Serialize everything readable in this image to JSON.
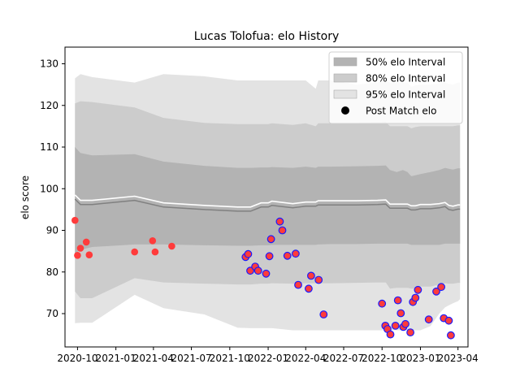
{
  "chart_data": {
    "type": "scatter",
    "title": "Lucas Tolofua: elo History",
    "xlabel": "",
    "ylabel": "elo score",
    "xlim": [
      "2020-09-01",
      "2023-04-25"
    ],
    "ylim": [
      62,
      134
    ],
    "x_ticks": [
      "2020-10",
      "2021-01",
      "2021-04",
      "2021-07",
      "2021-10",
      "2022-01",
      "2022-04",
      "2022-07",
      "2022-10",
      "2023-01",
      "2023-04"
    ],
    "y_ticks": [
      70,
      80,
      90,
      100,
      110,
      120,
      130
    ],
    "grid": false,
    "legend_position": "top-right",
    "legend": [
      {
        "label": "50% elo Interval",
        "color": "#b3b3b3",
        "kind": "patch"
      },
      {
        "label": "80% elo Interval",
        "color": "#cccccc",
        "kind": "patch"
      },
      {
        "label": "95% elo Interval",
        "color": "#e3e3e3",
        "kind": "patch"
      },
      {
        "label": "Post Match elo",
        "color": "#000000",
        "kind": "marker"
      }
    ],
    "bands": {
      "x": [
        "2020-09-25",
        "2020-10-08",
        "2020-11-05",
        "2021-02-15",
        "2021-04-25",
        "2021-08-01",
        "2021-10-20",
        "2021-11-20",
        "2021-12-15",
        "2022-01-01",
        "2022-01-10",
        "2022-03-01",
        "2022-04-01",
        "2022-04-25",
        "2022-05-01",
        "2022-06-01",
        "2022-08-01",
        "2022-09-20",
        "2022-10-10",
        "2022-10-20",
        "2022-11-05",
        "2022-11-20",
        "2022-12-01",
        "2022-12-10",
        "2022-12-20",
        "2023-01-01",
        "2023-01-25",
        "2023-02-15",
        "2023-03-01",
        "2023-03-10",
        "2023-03-20",
        "2023-04-01",
        "2023-04-06"
      ],
      "mean": [
        97.5,
        96.2,
        96.2,
        97.2,
        95.6,
        95.0,
        94.6,
        94.6,
        95.6,
        95.6,
        96.0,
        95.4,
        95.8,
        95.8,
        96.1,
        96.1,
        96.1,
        96.2,
        96.3,
        95.3,
        95.3,
        95.3,
        95.3,
        94.9,
        94.9,
        95.2,
        95.2,
        95.4,
        95.7,
        95.0,
        94.8,
        95.1,
        95.1
      ],
      "p50": [
        [
          84.5,
          110.0
        ],
        [
          85.3,
          108.6
        ],
        [
          86.0,
          108.0
        ],
        [
          86.6,
          108.3
        ],
        [
          86.6,
          106.5
        ],
        [
          86.4,
          105.5
        ],
        [
          86.3,
          105.0
        ],
        [
          86.3,
          105.0
        ],
        [
          86.4,
          105.1
        ],
        [
          86.4,
          105.1
        ],
        [
          86.5,
          105.2
        ],
        [
          86.5,
          105.0
        ],
        [
          86.5,
          105.3
        ],
        [
          86.5,
          105.0
        ],
        [
          86.6,
          105.3
        ],
        [
          86.7,
          105.3
        ],
        [
          86.7,
          105.4
        ],
        [
          86.8,
          105.5
        ],
        [
          86.8,
          105.6
        ],
        [
          86.8,
          104.5
        ],
        [
          86.8,
          104.0
        ],
        [
          86.8,
          104.5
        ],
        [
          86.8,
          104.0
        ],
        [
          86.5,
          103.0
        ],
        [
          86.5,
          103.2
        ],
        [
          86.5,
          103.5
        ],
        [
          86.5,
          104.0
        ],
        [
          86.5,
          104.5
        ],
        [
          86.8,
          105.0
        ],
        [
          86.8,
          104.8
        ],
        [
          86.8,
          104.6
        ],
        [
          86.8,
          104.9
        ],
        [
          86.8,
          104.9
        ]
      ],
      "p80": [
        [
          75.3,
          120.5
        ],
        [
          73.7,
          121.0
        ],
        [
          73.7,
          120.8
        ],
        [
          78.5,
          119.5
        ],
        [
          77.5,
          117.0
        ],
        [
          77.2,
          115.8
        ],
        [
          77.0,
          115.5
        ],
        [
          77.0,
          115.5
        ],
        [
          77.2,
          115.5
        ],
        [
          77.2,
          115.5
        ],
        [
          77.3,
          115.7
        ],
        [
          77.2,
          115.3
        ],
        [
          77.3,
          115.7
        ],
        [
          77.3,
          115.0
        ],
        [
          77.3,
          115.7
        ],
        [
          77.3,
          115.7
        ],
        [
          77.4,
          115.8
        ],
        [
          77.5,
          115.9
        ],
        [
          77.5,
          116.0
        ],
        [
          76.0,
          115.0
        ],
        [
          76.2,
          115.0
        ],
        [
          76.2,
          115.0
        ],
        [
          76.2,
          115.0
        ],
        [
          76.0,
          114.5
        ],
        [
          76.0,
          114.8
        ],
        [
          76.5,
          115.0
        ],
        [
          76.5,
          115.0
        ],
        [
          77.0,
          115.0
        ],
        [
          77.3,
          115.0
        ],
        [
          77.2,
          115.0
        ],
        [
          77.2,
          115.0
        ],
        [
          77.4,
          115.2
        ],
        [
          77.4,
          115.2
        ]
      ],
      "p95": [
        [
          67.7,
          126.5
        ],
        [
          67.8,
          127.5
        ],
        [
          67.8,
          126.8
        ],
        [
          74.5,
          125.5
        ],
        [
          71.3,
          127.5
        ],
        [
          69.8,
          127.0
        ],
        [
          66.6,
          126.0
        ],
        [
          66.5,
          126.0
        ],
        [
          66.5,
          126.0
        ],
        [
          66.5,
          126.0
        ],
        [
          66.5,
          126.0
        ],
        [
          66.0,
          126.0
        ],
        [
          66.0,
          126.0
        ],
        [
          66.0,
          124.0
        ],
        [
          66.0,
          126.0
        ],
        [
          66.0,
          126.0
        ],
        [
          66.0,
          125.0
        ],
        [
          66.0,
          125.5
        ],
        [
          66.0,
          126.0
        ],
        [
          66.0,
          125.5
        ],
        [
          66.0,
          125.5
        ],
        [
          66.0,
          125.5
        ],
        [
          66.0,
          125.5
        ],
        [
          66.0,
          124.5
        ],
        [
          66.0,
          124.8
        ],
        [
          66.0,
          125.0
        ],
        [
          67.0,
          125.0
        ],
        [
          70.0,
          125.3
        ],
        [
          71.5,
          125.5
        ],
        [
          72.0,
          125.2
        ],
        [
          72.5,
          125.0
        ],
        [
          73.0,
          125.5
        ],
        [
          73.5,
          125.5
        ]
      ]
    },
    "series": [
      {
        "name": "Post Match elo",
        "marker": "early",
        "points": [
          {
            "x": "2020-09-25",
            "y": 92.4
          },
          {
            "x": "2020-10-01",
            "y": 84.0
          },
          {
            "x": "2020-10-08",
            "y": 85.7
          },
          {
            "x": "2020-10-22",
            "y": 87.2
          },
          {
            "x": "2020-10-29",
            "y": 84.1
          },
          {
            "x": "2021-02-15",
            "y": 84.8
          },
          {
            "x": "2021-03-30",
            "y": 87.5
          },
          {
            "x": "2021-04-05",
            "y": 84.8
          },
          {
            "x": "2021-05-15",
            "y": 86.2
          }
        ]
      },
      {
        "name": "Post Match elo",
        "marker": "late",
        "points": [
          {
            "x": "2021-11-08",
            "y": 83.6
          },
          {
            "x": "2021-11-14",
            "y": 84.3
          },
          {
            "x": "2021-11-19",
            "y": 80.3
          },
          {
            "x": "2021-12-01",
            "y": 81.3
          },
          {
            "x": "2021-12-08",
            "y": 80.3
          },
          {
            "x": "2021-12-27",
            "y": 79.6
          },
          {
            "x": "2022-01-04",
            "y": 83.8
          },
          {
            "x": "2022-01-08",
            "y": 87.9
          },
          {
            "x": "2022-01-29",
            "y": 92.1
          },
          {
            "x": "2022-02-04",
            "y": 90.0
          },
          {
            "x": "2022-02-16",
            "y": 83.9
          },
          {
            "x": "2022-03-08",
            "y": 84.4
          },
          {
            "x": "2022-03-14",
            "y": 76.9
          },
          {
            "x": "2022-04-08",
            "y": 76.0
          },
          {
            "x": "2022-04-14",
            "y": 79.1
          },
          {
            "x": "2022-05-02",
            "y": 78.1
          },
          {
            "x": "2022-05-14",
            "y": 69.8
          },
          {
            "x": "2022-10-01",
            "y": 72.4
          },
          {
            "x": "2022-10-09",
            "y": 67.1
          },
          {
            "x": "2022-10-14",
            "y": 66.3
          },
          {
            "x": "2022-10-21",
            "y": 65.0
          },
          {
            "x": "2022-11-02",
            "y": 67.1
          },
          {
            "x": "2022-11-08",
            "y": 73.2
          },
          {
            "x": "2022-11-15",
            "y": 70.1
          },
          {
            "x": "2022-11-21",
            "y": 66.8
          },
          {
            "x": "2022-11-26",
            "y": 67.5
          },
          {
            "x": "2022-12-08",
            "y": 65.5
          },
          {
            "x": "2022-12-14",
            "y": 72.8
          },
          {
            "x": "2022-12-20",
            "y": 73.8
          },
          {
            "x": "2022-12-26",
            "y": 75.7
          },
          {
            "x": "2023-01-21",
            "y": 68.6
          },
          {
            "x": "2023-02-08",
            "y": 75.3
          },
          {
            "x": "2023-02-20",
            "y": 76.4
          },
          {
            "x": "2023-02-26",
            "y": 68.9
          },
          {
            "x": "2023-03-10",
            "y": 68.3
          },
          {
            "x": "2023-03-15",
            "y": 64.8
          }
        ]
      }
    ]
  },
  "colors": {
    "band_50": "#b3b3b3",
    "band_80": "#cccccc",
    "band_95": "#e3e3e3",
    "mean_line": "#808080",
    "mean_halo": "#ffffff",
    "marker_early_fill": "#ff3b3b",
    "marker_late_fill": "#ff3b3b",
    "marker_late_edge": "#1a1aff",
    "legend_marker": "#000000"
  }
}
